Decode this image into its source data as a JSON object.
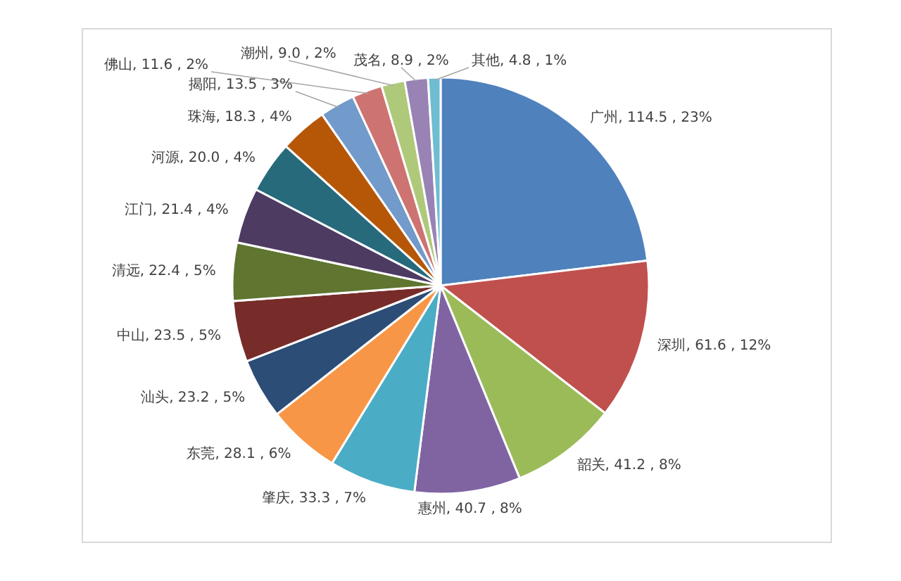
{
  "chart_data": {
    "type": "pie",
    "categories": [
      "广州",
      "深圳",
      "韶关",
      "惠州",
      "肇庆",
      "东莞",
      "汕头",
      "中山",
      "清远",
      "江门",
      "河源",
      "珠海",
      "揭阳",
      "佛山",
      "潮州",
      "茂名",
      "其他"
    ],
    "values": [
      114.5,
      61.6,
      41.2,
      40.7,
      33.3,
      28.1,
      23.2,
      23.5,
      22.4,
      21.4,
      20.0,
      18.3,
      13.5,
      11.6,
      9.0,
      8.9,
      4.8
    ],
    "value_labels": [
      "114.5 , 23%",
      "61.6 , 12%",
      "41.2 , 8%",
      "40.7 , 8%",
      "33.3 , 7%",
      "28.1 , 6%",
      "23.2 , 5%",
      "23.5 , 5%",
      "22.4 , 5%",
      "21.4 , 4%",
      "20.0 , 4%",
      "18.3 , 4%",
      "13.5 , 3%",
      "11.6 , 2%",
      "9.0 , 2%",
      "8.9 , 2%",
      "4.8 , 1%"
    ],
    "colors": [
      "#4f81bd",
      "#c0504d",
      "#9bbb59",
      "#8064a2",
      "#4bacc6",
      "#f79646",
      "#2c4d75",
      "#772c2a",
      "#5f7530",
      "#4d3b62",
      "#276a7c",
      "#b65708",
      "#729aca",
      "#cd7371",
      "#afc97a",
      "#9983b5",
      "#6fbdd1"
    ],
    "legend": false
  }
}
